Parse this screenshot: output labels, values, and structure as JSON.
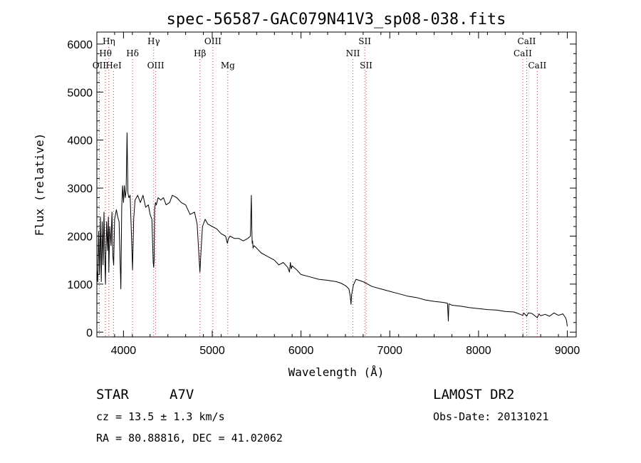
{
  "chart_data": {
    "type": "line",
    "title": "spec-56587-GAC079N41V3_sp08-038.fits",
    "xlabel": "Wavelength (Å)",
    "ylabel": "Flux (relative)",
    "xlim": [
      3700,
      9100
    ],
    "ylim": [
      -100,
      6250
    ],
    "xticks": [
      4000,
      5000,
      6000,
      7000,
      8000,
      9000
    ],
    "yticks": [
      0,
      1000,
      2000,
      3000,
      4000,
      5000,
      6000
    ],
    "grid": false,
    "line_color": "#000000",
    "marker_color": "#cc3333",
    "spectrum": {
      "x": [
        3700,
        3710,
        3720,
        3730,
        3740,
        3750,
        3760,
        3770,
        3780,
        3790,
        3797,
        3800,
        3810,
        3820,
        3830,
        3835,
        3845,
        3860,
        3870,
        3880,
        3889,
        3900,
        3920,
        3935,
        3950,
        3970,
        3980,
        3990,
        4000,
        4010,
        4020,
        4030,
        4040,
        4050,
        4060,
        4075,
        4090,
        4102,
        4115,
        4130,
        4160,
        4190,
        4220,
        4250,
        4280,
        4300,
        4320,
        4335,
        4340,
        4345,
        4350,
        4360,
        4370,
        4390,
        4420,
        4450,
        4480,
        4520,
        4550,
        4600,
        4650,
        4700,
        4750,
        4800,
        4830,
        4850,
        4861,
        4872,
        4890,
        4920,
        4950,
        5000,
        5050,
        5100,
        5150,
        5170,
        5183,
        5200,
        5250,
        5300,
        5350,
        5400,
        5430,
        5440,
        5445,
        5450,
        5455,
        5460,
        5470,
        5500,
        5550,
        5600,
        5650,
        5700,
        5750,
        5800,
        5850,
        5870,
        5880,
        5890,
        5900,
        5950,
        6000,
        6100,
        6200,
        6300,
        6400,
        6450,
        6500,
        6540,
        6555,
        6563,
        6570,
        6590,
        6620,
        6700,
        6800,
        6900,
        7000,
        7100,
        7200,
        7300,
        7400,
        7500,
        7600,
        7650,
        7660,
        7665,
        7670,
        7680,
        7700,
        7800,
        7900,
        8000,
        8100,
        8200,
        8300,
        8400,
        8498,
        8510,
        8542,
        8560,
        8600,
        8662,
        8680,
        8700,
        8750,
        8800,
        8850,
        8900,
        8950,
        8980,
        8990,
        9000
      ],
      "y": [
        1300,
        1050,
        2100,
        1200,
        2400,
        1050,
        2300,
        1400,
        2500,
        1500,
        1000,
        1550,
        2300,
        1700,
        2400,
        1250,
        2200,
        1800,
        2500,
        1600,
        1400,
        2350,
        2550,
        2400,
        2300,
        900,
        2600,
        3050,
        2700,
        3050,
        2800,
        2950,
        4150,
        2900,
        2800,
        2850,
        2000,
        1300,
        2350,
        2750,
        2850,
        2700,
        2850,
        2600,
        2650,
        2450,
        2350,
        1450,
        1350,
        1500,
        2550,
        2700,
        2650,
        2800,
        2750,
        2800,
        2650,
        2700,
        2850,
        2800,
        2700,
        2650,
        2450,
        2500,
        2250,
        1600,
        1250,
        1650,
        2200,
        2350,
        2250,
        2200,
        2150,
        2050,
        2000,
        1850,
        1950,
        2000,
        1950,
        1950,
        1900,
        1950,
        2000,
        2850,
        2200,
        1850,
        1900,
        1750,
        1800,
        1750,
        1650,
        1600,
        1550,
        1500,
        1400,
        1450,
        1350,
        1250,
        1450,
        1320,
        1380,
        1300,
        1200,
        1150,
        1100,
        1080,
        1050,
        1020,
        970,
        900,
        750,
        580,
        780,
        980,
        1100,
        1050,
        950,
        900,
        850,
        800,
        750,
        720,
        670,
        640,
        620,
        600,
        230,
        580,
        590,
        580,
        560,
        540,
        510,
        490,
        470,
        460,
        430,
        420,
        350,
        400,
        330,
        400,
        390,
        300,
        380,
        340,
        370,
        330,
        400,
        350,
        380,
        300,
        250,
        120
      ]
    },
    "line_markers": [
      {
        "label": "Hη",
        "wavelength": 3835,
        "row": 1
      },
      {
        "label": "Hθ",
        "wavelength": 3797,
        "row": 2
      },
      {
        "label": "OII",
        "wavelength": 3727,
        "row": 3
      },
      {
        "label": "HeI",
        "wavelength": 3889,
        "row": 3
      },
      {
        "label": "Hδ",
        "wavelength": 4102,
        "row": 2
      },
      {
        "label": "Hγ",
        "wavelength": 4340,
        "row": 1
      },
      {
        "label": "OIII",
        "wavelength": 4363,
        "row": 3
      },
      {
        "label": "Hβ",
        "wavelength": 4861,
        "row": 2
      },
      {
        "label": "OIII",
        "wavelength": 5007,
        "row": 1
      },
      {
        "label": "Mg",
        "wavelength": 5175,
        "row": 3
      },
      {
        "label": "NII",
        "wavelength": 6585,
        "row": 2
      },
      {
        "label": "SII",
        "wavelength": 6718,
        "row": 1
      },
      {
        "label": "SII",
        "wavelength": 6733,
        "row": 3
      },
      {
        "label": "CaII",
        "wavelength": 8498,
        "row": 2
      },
      {
        "label": "CaII",
        "wavelength": 8542,
        "row": 1
      },
      {
        "label": "CaII",
        "wavelength": 8662,
        "row": 3
      }
    ]
  },
  "info": {
    "object_class": "STAR",
    "subclass": "A7V",
    "survey": "LAMOST DR2",
    "redshift": "cz = 13.5 ± 1.3 km/s",
    "obs_date": "Obs-Date: 20131021",
    "coords": "RA =  80.88816, DEC =  41.02062"
  }
}
